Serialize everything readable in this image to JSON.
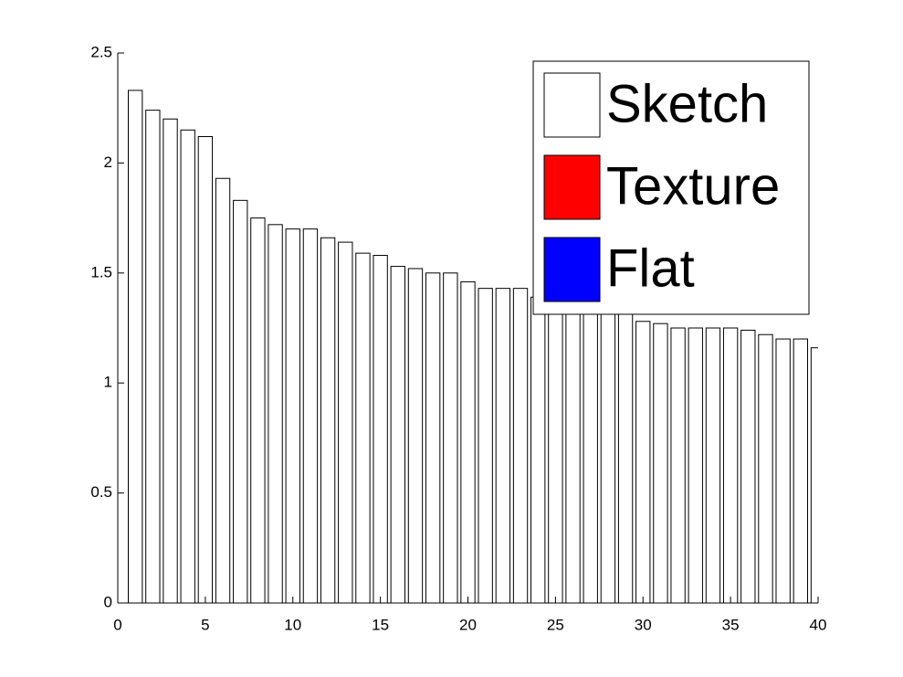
{
  "chart_data": {
    "type": "bar",
    "x": [
      1,
      2,
      3,
      4,
      5,
      6,
      7,
      8,
      9,
      10,
      11,
      12,
      13,
      14,
      15,
      16,
      17,
      18,
      19,
      20,
      21,
      22,
      23,
      24,
      25,
      26,
      27,
      28,
      29,
      30,
      31,
      32,
      33,
      34,
      35,
      36,
      37,
      38,
      39,
      40
    ],
    "series": [
      {
        "name": "Sketch",
        "color": "#ffffff",
        "values": [
          2.33,
          2.24,
          2.2,
          2.15,
          2.12,
          1.93,
          1.83,
          1.75,
          1.72,
          1.7,
          1.7,
          1.66,
          1.64,
          1.59,
          1.58,
          1.53,
          1.52,
          1.5,
          1.5,
          1.46,
          1.43,
          1.43,
          1.43,
          1.39,
          1.38,
          1.36,
          1.34,
          1.33,
          1.32,
          1.28,
          1.27,
          1.25,
          1.25,
          1.25,
          1.25,
          1.24,
          1.22,
          1.2,
          1.2,
          1.16
        ]
      },
      {
        "name": "Texture",
        "color": "#ff0000",
        "values": [
          null,
          null,
          null,
          null,
          null,
          null,
          null,
          null,
          null,
          null,
          null,
          null,
          null,
          null,
          null,
          null,
          null,
          null,
          null,
          null,
          null,
          null,
          null,
          null,
          null,
          null,
          null,
          null,
          null,
          null,
          null,
          null,
          null,
          null,
          null,
          null,
          null,
          null,
          null,
          null
        ]
      },
      {
        "name": "Flat",
        "color": "#0000ff",
        "values": [
          null,
          null,
          null,
          null,
          null,
          null,
          null,
          null,
          null,
          null,
          null,
          null,
          null,
          null,
          null,
          null,
          null,
          null,
          null,
          null,
          null,
          null,
          null,
          null,
          null,
          null,
          null,
          null,
          null,
          null,
          null,
          null,
          null,
          null,
          null,
          null,
          null,
          null,
          null,
          null
        ]
      }
    ],
    "xlim": [
      0,
      40
    ],
    "xticks": [
      0,
      5,
      10,
      15,
      20,
      25,
      30,
      35,
      40
    ],
    "ylim": [
      0,
      2.5
    ],
    "yticks": [
      0,
      0.5,
      1,
      1.5,
      2,
      2.5
    ],
    "legend_position": "upper right",
    "grid": false
  }
}
